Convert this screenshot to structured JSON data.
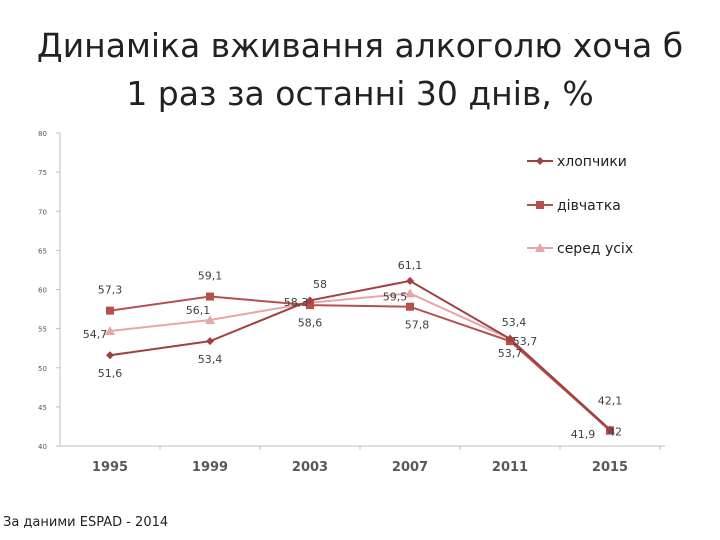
{
  "title": {
    "line1": "Динаміка вживання алкоголю хоча б",
    "line2": "1 раз за останні 30 днів, %"
  },
  "source": "За даними ESPAD - 2014",
  "chart_data": {
    "type": "line",
    "x": [
      "1995",
      "1999",
      "2003",
      "2007",
      "2011",
      "2015"
    ],
    "ylim": [
      40,
      80
    ],
    "yticks": [
      40,
      45,
      50,
      55,
      60,
      65,
      70,
      75,
      80
    ],
    "grid": false,
    "legend_position": "top-right",
    "series": [
      {
        "name": "хлопчики",
        "values": [
          51.6,
          53.4,
          58.6,
          61.1,
          53.7,
          42.1
        ],
        "labels": [
          "51,6",
          "53,4",
          "58,6",
          "61,1",
          "53,7",
          "42,1"
        ],
        "color": "#a0403f",
        "marker": "diamond"
      },
      {
        "name": "дівчатка",
        "values": [
          57.3,
          59.1,
          58.0,
          57.8,
          53.4,
          42.0
        ],
        "labels": [
          "57,3",
          "59,1",
          "58",
          "57,8",
          "53,4",
          "42"
        ],
        "color": "#b5514d",
        "marker": "square"
      },
      {
        "name": "серед усіх",
        "values": [
          54.7,
          56.1,
          58.3,
          59.5,
          53.7,
          41.9
        ],
        "labels": [
          "54,7",
          "56,1",
          "58,3",
          "59,5",
          "53,7",
          "41,9"
        ],
        "color": "#e8a6a9",
        "marker": "triangle"
      }
    ]
  }
}
